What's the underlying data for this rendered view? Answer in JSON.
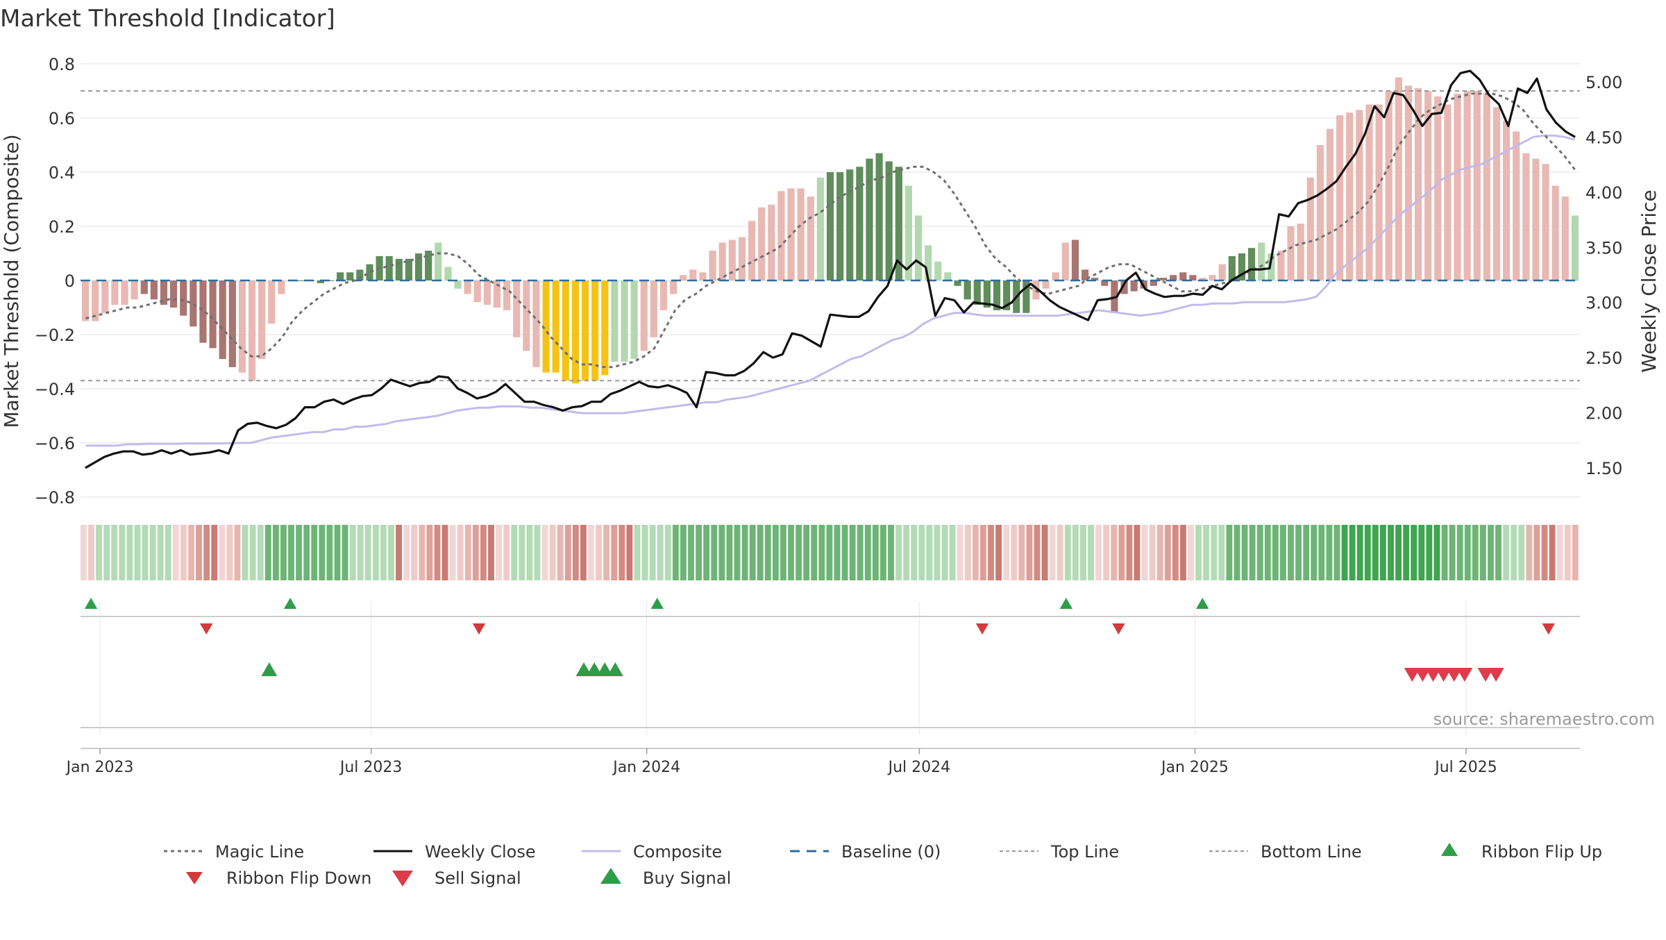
{
  "chart_data": {
    "type": "bar",
    "title": "Market Threshold [Indicator]",
    "ylabel": "Market Threshold (Composite)",
    "y2label": "Weekly Close Price",
    "source": "source: sharemaestro.com",
    "ylim": [
      -0.85,
      0.8
    ],
    "y2lim": [
      1.0,
      5.2
    ],
    "yticks": [
      0.8,
      0.6,
      0.4,
      0.2,
      0,
      -0.2,
      -0.4,
      -0.6,
      -0.8
    ],
    "ytick_labels": [
      "0.8",
      "0.6",
      "0.4",
      "0.2",
      "0",
      "−0.2",
      "−0.4",
      "−0.6",
      "−0.8"
    ],
    "y2ticks": [
      5.0,
      4.5,
      4.0,
      3.5,
      3.0,
      2.5,
      2.0,
      1.5
    ],
    "y2tick_labels": [
      "5.00",
      "4.50",
      "4.00",
      "3.50",
      "3.00",
      "2.50",
      "2.00",
      "1.50"
    ],
    "x_start": "2022-12-19",
    "x_end": "2025-09-15",
    "xticks": [
      {
        "date": "2023-01-01",
        "label": "Jan 2023"
      },
      {
        "date": "2023-07-01",
        "label": "Jul 2023"
      },
      {
        "date": "2024-01-01",
        "label": "Jan 2024"
      },
      {
        "date": "2024-07-01",
        "label": "Jul 2024"
      },
      {
        "date": "2025-01-01",
        "label": "Jan 2025"
      },
      {
        "date": "2025-07-01",
        "label": "Jul 2025"
      }
    ],
    "week_start": "2022-12-19",
    "composite": [
      -0.15,
      -0.15,
      -0.12,
      -0.09,
      -0.09,
      -0.07,
      -0.05,
      -0.07,
      -0.09,
      -0.1,
      -0.13,
      -0.17,
      -0.23,
      -0.25,
      -0.29,
      -0.32,
      -0.34,
      -0.37,
      -0.29,
      -0.16,
      -0.05,
      0.0,
      0.0,
      0.0,
      -0.01,
      0.0,
      0.03,
      0.03,
      0.04,
      0.06,
      0.09,
      0.09,
      0.08,
      0.08,
      0.1,
      0.11,
      0.14,
      0.05,
      -0.03,
      -0.05,
      -0.08,
      -0.09,
      -0.1,
      -0.11,
      -0.21,
      -0.26,
      -0.32,
      -0.34,
      -0.34,
      -0.37,
      -0.38,
      -0.37,
      -0.37,
      -0.35,
      -0.3,
      -0.3,
      -0.29,
      -0.26,
      -0.21,
      -0.11,
      -0.05,
      0.02,
      0.04,
      0.03,
      0.11,
      0.14,
      0.15,
      0.16,
      0.22,
      0.27,
      0.28,
      0.33,
      0.34,
      0.34,
      0.31,
      0.38,
      0.4,
      0.4,
      0.41,
      0.42,
      0.45,
      0.47,
      0.44,
      0.42,
      0.35,
      0.24,
      0.13,
      0.07,
      0.03,
      -0.02,
      -0.07,
      -0.09,
      -0.1,
      -0.11,
      -0.11,
      -0.12,
      -0.12,
      -0.07,
      -0.03,
      0.03,
      0.14,
      0.15,
      0.04,
      0.01,
      -0.02,
      -0.12,
      -0.05,
      -0.04,
      -0.03,
      -0.02,
      0.01,
      0.02,
      0.03,
      0.02,
      0.01,
      0.02,
      0.06,
      0.09,
      0.1,
      0.12,
      0.14,
      0.1,
      0.11,
      0.2,
      0.21,
      0.38,
      0.5,
      0.56,
      0.61,
      0.62,
      0.63,
      0.65,
      0.65,
      0.7,
      0.75,
      0.72,
      0.71,
      0.7,
      0.68,
      0.65,
      0.69,
      0.7,
      0.7,
      0.69,
      0.64,
      0.59,
      0.55,
      0.47,
      0.45,
      0.43,
      0.35,
      0.31,
      0.24
    ],
    "bar_color_codes": "111111777777777711110333333333333333222000000008888888444111111001111111111233333333222223333333311119999999777777000333220000000000001111111111111111112222222223333335555555555555322222222222",
    "bar_palette": {
      "0": "#e8b8b3",
      "1": "#e8b8b3",
      "7": "#a87570",
      "8": "#f5c316",
      "9": "#a87570",
      "2": "#b2d8b0",
      "3": "#5f8d5b",
      "4": "#b2d8b0",
      "5": "#f5c316"
    },
    "weekly_close": [
      1.5,
      1.55,
      1.6,
      1.63,
      1.65,
      1.65,
      1.62,
      1.63,
      1.66,
      1.63,
      1.66,
      1.62,
      1.63,
      1.64,
      1.66,
      1.63,
      1.84,
      1.9,
      1.91,
      1.88,
      1.86,
      1.89,
      1.95,
      2.05,
      2.05,
      2.1,
      2.12,
      2.08,
      2.12,
      2.15,
      2.16,
      2.22,
      2.3,
      2.27,
      2.24,
      2.27,
      2.28,
      2.33,
      2.32,
      2.22,
      2.18,
      2.13,
      2.15,
      2.19,
      2.26,
      2.18,
      2.1,
      2.1,
      2.07,
      2.05,
      2.02,
      2.05,
      2.06,
      2.1,
      2.1,
      2.17,
      2.2,
      2.24,
      2.28,
      2.24,
      2.23,
      2.25,
      2.22,
      2.18,
      2.05,
      2.37,
      2.36,
      2.34,
      2.34,
      2.38,
      2.45,
      2.55,
      2.5,
      2.53,
      2.72,
      2.7,
      2.65,
      2.6,
      2.89,
      2.88,
      2.87,
      2.87,
      2.92,
      3.05,
      3.15,
      3.38,
      3.3,
      3.38,
      3.32,
      2.88,
      3.04,
      3.02,
      2.91,
      3.0,
      2.99,
      2.98,
      2.95,
      3.0,
      3.1,
      3.17,
      3.1,
      3.02,
      2.96,
      2.92,
      2.88,
      2.84,
      3.02,
      3.03,
      3.05,
      3.2,
      3.27,
      3.12,
      3.08,
      3.05,
      3.06,
      3.06,
      3.08,
      3.07,
      3.15,
      3.12,
      3.2,
      3.25,
      3.3,
      3.3,
      3.31,
      3.8,
      3.78,
      3.9,
      3.93,
      3.97,
      4.03,
      4.1,
      4.23,
      4.35,
      4.53,
      4.78,
      4.68,
      4.9,
      4.88,
      4.75,
      4.6,
      4.71,
      4.72,
      4.97,
      5.08,
      5.1,
      5.02,
      4.88,
      4.8,
      4.6,
      4.94,
      4.9,
      5.03,
      4.75,
      4.63,
      4.55,
      4.5
    ],
    "magic_line": [
      -0.14,
      -0.13,
      -0.12,
      -0.11,
      -0.1,
      -0.1,
      -0.09,
      -0.08,
      -0.07,
      -0.07,
      -0.08,
      -0.1,
      -0.13,
      -0.17,
      -0.21,
      -0.25,
      -0.28,
      -0.28,
      -0.25,
      -0.21,
      -0.15,
      -0.11,
      -0.08,
      -0.05,
      -0.03,
      -0.01,
      0.0,
      0.02,
      0.04,
      0.05,
      0.06,
      0.07,
      0.08,
      0.09,
      0.1,
      0.1,
      0.09,
      0.06,
      0.02,
      0.0,
      -0.02,
      -0.04,
      -0.08,
      -0.12,
      -0.16,
      -0.21,
      -0.25,
      -0.29,
      -0.31,
      -0.31,
      -0.32,
      -0.32,
      -0.31,
      -0.3,
      -0.28,
      -0.25,
      -0.18,
      -0.11,
      -0.07,
      -0.05,
      -0.02,
      0.0,
      0.02,
      0.04,
      0.06,
      0.08,
      0.1,
      0.12,
      0.16,
      0.2,
      0.23,
      0.25,
      0.28,
      0.31,
      0.33,
      0.35,
      0.37,
      0.38,
      0.4,
      0.41,
      0.42,
      0.42,
      0.4,
      0.37,
      0.32,
      0.26,
      0.2,
      0.13,
      0.08,
      0.05,
      0.01,
      -0.02,
      -0.04,
      -0.05,
      -0.04,
      -0.03,
      -0.02,
      0.01,
      0.03,
      0.05,
      0.06,
      0.06,
      0.04,
      0.02,
      0.0,
      -0.02,
      -0.04,
      -0.04,
      -0.03,
      -0.02,
      -0.01,
      0.0,
      0.02,
      0.04,
      0.06,
      0.09,
      0.11,
      0.13,
      0.14,
      0.15,
      0.17,
      0.19,
      0.22,
      0.25,
      0.29,
      0.35,
      0.42,
      0.5,
      0.55,
      0.6,
      0.63,
      0.65,
      0.67,
      0.68,
      0.69,
      0.69,
      0.69,
      0.68,
      0.66,
      0.63,
      0.58,
      0.54,
      0.5,
      0.46,
      0.41
    ],
    "composite_smooth": [
      -0.61,
      -0.61,
      -0.61,
      -0.61,
      -0.605,
      -0.605,
      -0.603,
      -0.603,
      -0.603,
      -0.603,
      -0.602,
      -0.602,
      -0.602,
      -0.602,
      -0.601,
      -0.6,
      -0.6,
      -0.59,
      -0.58,
      -0.575,
      -0.57,
      -0.565,
      -0.56,
      -0.56,
      -0.55,
      -0.55,
      -0.54,
      -0.54,
      -0.535,
      -0.53,
      -0.52,
      -0.515,
      -0.51,
      -0.505,
      -0.5,
      -0.49,
      -0.48,
      -0.475,
      -0.47,
      -0.47,
      -0.465,
      -0.465,
      -0.465,
      -0.47,
      -0.47,
      -0.475,
      -0.48,
      -0.485,
      -0.49,
      -0.49,
      -0.49,
      -0.49,
      -0.49,
      -0.485,
      -0.48,
      -0.475,
      -0.47,
      -0.465,
      -0.46,
      -0.455,
      -0.45,
      -0.45,
      -0.44,
      -0.435,
      -0.43,
      -0.42,
      -0.41,
      -0.4,
      -0.39,
      -0.38,
      -0.37,
      -0.35,
      -0.33,
      -0.31,
      -0.29,
      -0.28,
      -0.26,
      -0.24,
      -0.22,
      -0.21,
      -0.19,
      -0.16,
      -0.14,
      -0.13,
      -0.12,
      -0.12,
      -0.125,
      -0.13,
      -0.13,
      -0.13,
      -0.13,
      -0.13,
      -0.13,
      -0.13,
      -0.13,
      -0.125,
      -0.12,
      -0.115,
      -0.11,
      -0.115,
      -0.12,
      -0.125,
      -0.13,
      -0.125,
      -0.12,
      -0.11,
      -0.1,
      -0.09,
      -0.09,
      -0.085,
      -0.085,
      -0.085,
      -0.08,
      -0.08,
      -0.08,
      -0.08,
      -0.08,
      -0.075,
      -0.07,
      -0.06,
      -0.02,
      0.03,
      0.06,
      0.09,
      0.12,
      0.16,
      0.2,
      0.24,
      0.27,
      0.3,
      0.33,
      0.37,
      0.39,
      0.41,
      0.42,
      0.43,
      0.45,
      0.47,
      0.49,
      0.51,
      0.53,
      0.535,
      0.535,
      0.53,
      0.52
    ],
    "top_line": 0.7,
    "bottom_line": -0.37,
    "ribbon_color_codes": "001111111111000000000111222222222221111110000000000000001111000000000000111112222222222222222222222222222211111111000000000000001111000000000000011112222222222222223333333333333222222221110000000",
    "ribbon_palette": {
      "0": "#e3a39d",
      "1": "#b3dbb6",
      "2": "#6db575",
      "3": "#3fa54f"
    },
    "ribbon_red_shades": [
      "#f2d6d3",
      "#efcac6",
      "#e6b5b0",
      "#de9f98",
      "#d38a82",
      "#c97a72"
    ],
    "ribbon_flip_up_dates": [
      "2022-12-26",
      "2023-05-08",
      "2024-01-08",
      "2024-10-07",
      "2025-01-06"
    ],
    "ribbon_flip_down_dates": [
      "2023-03-13",
      "2023-09-11",
      "2024-08-12",
      "2024-11-11",
      "2025-08-25"
    ],
    "buy_signal_dates": [
      "2023-04-24",
      "2023-11-20",
      "2023-11-27",
      "2023-12-04",
      "2023-12-11"
    ],
    "sell_signal_dates": [
      "2025-05-26",
      "2025-06-02",
      "2025-06-09",
      "2025-06-16",
      "2025-06-23",
      "2025-06-30",
      "2025-07-14",
      "2025-07-21"
    ],
    "colors": {
      "magic_line": "#6f6f6f",
      "weekly_close": "#111111",
      "composite": "#c4baea",
      "baseline": "#2d6da0",
      "ref_lines": "#9a9a9a",
      "flip_up": "#2e9e49",
      "flip_down": "#d33a3a",
      "sell": "#df3b4b",
      "buy": "#2f9d47"
    },
    "legend": [
      {
        "key": "magic",
        "label": "Magic Line"
      },
      {
        "key": "close",
        "label": "Weekly Close"
      },
      {
        "key": "composite",
        "label": "Composite"
      },
      {
        "key": "baseline",
        "label": "Baseline (0)"
      },
      {
        "key": "top",
        "label": "Top Line"
      },
      {
        "key": "bottom",
        "label": "Bottom Line"
      },
      {
        "key": "flipup",
        "label": "Ribbon Flip Up"
      },
      {
        "key": "flipdown",
        "label": "Ribbon Flip Down"
      },
      {
        "key": "sell",
        "label": "Sell Signal"
      },
      {
        "key": "buy",
        "label": "Buy Signal"
      }
    ]
  }
}
